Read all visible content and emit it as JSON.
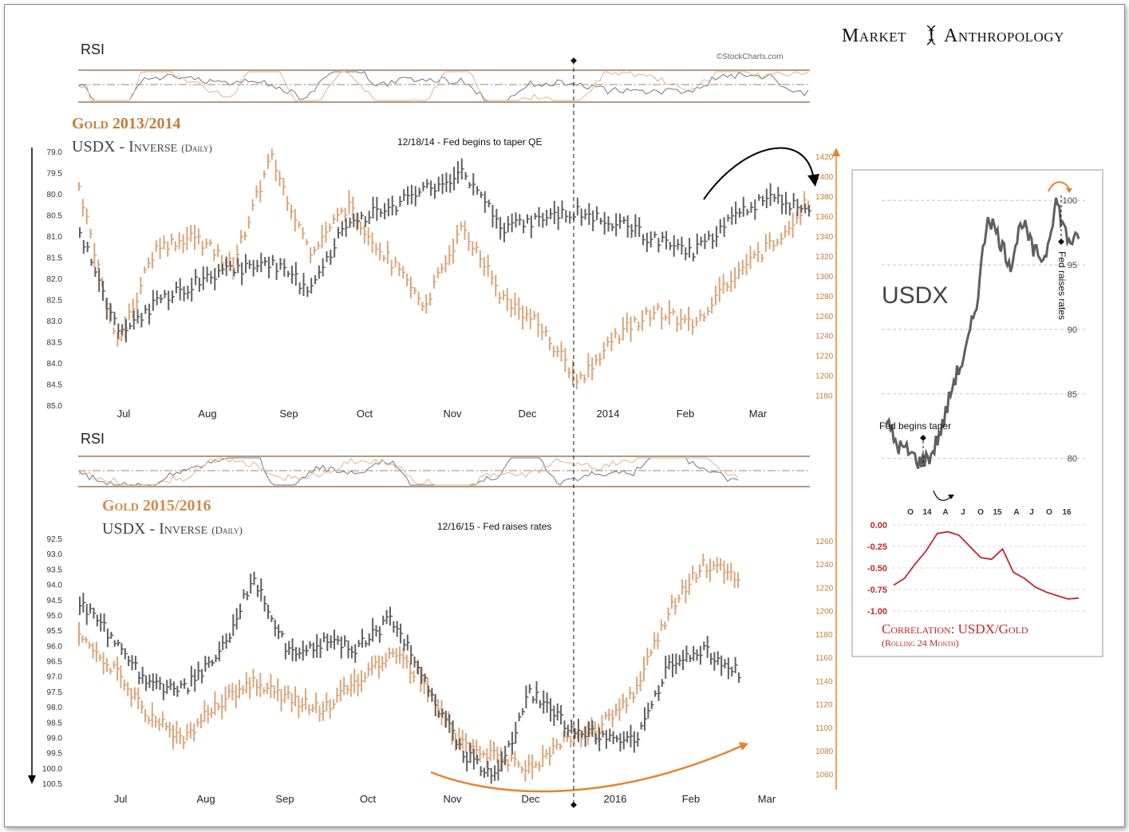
{
  "header": {
    "brand_left": "Market",
    "brand_right": "Anthropology",
    "copyright": "©StockCharts.com"
  },
  "colors": {
    "gold": "#d9a57a",
    "gold_title": "#c47d3c",
    "usdx": "#5f5f5f",
    "usdx_inverse_title": "#444444",
    "correlation": "#c0272d",
    "rsi_line": "#8a5a36",
    "annotation": "#000000",
    "arrow_orange": "#e8822a"
  },
  "chart_data": [
    {
      "type": "bar",
      "panel": "top",
      "rsi_label": "RSI",
      "title_gold": "Gold 2013/2014",
      "title_usdx": "USDX - Inverse",
      "title_usdx_sub": "(Daily)",
      "annotation": "12/18/14 - Fed begins to taper QE",
      "x_tick_labels": [
        "Jul",
        "Aug",
        "Sep",
        "Oct",
        "Nov",
        "Dec",
        "2014",
        "Feb",
        "Mar"
      ],
      "left_axis_ticks": [
        "79.0",
        "79.5",
        "80.0",
        "80.5",
        "81.0",
        "81.5",
        "82.0",
        "82.5",
        "83.0",
        "83.5",
        "84.0",
        "84.5",
        "85.0"
      ],
      "left_axis_inverted": true,
      "right_axis_ticks": [
        "1420",
        "1400",
        "1380",
        "1360",
        "1340",
        "1320",
        "1300",
        "1280",
        "1260",
        "1240",
        "1220",
        "1200",
        "1180"
      ],
      "ylim_left": [
        79.0,
        85.0
      ],
      "ylim_right": [
        1170,
        1425
      ],
      "series": [
        {
          "name": "Gold",
          "axis": "right",
          "x": [
            "Jun 27",
            "Jul 8",
            "Jul 22",
            "Aug 5",
            "Aug 19",
            "Aug 28",
            "Sep 10",
            "Sep 24",
            "Oct 8",
            "Oct 22",
            "Nov 5",
            "Nov 20",
            "Dec 5",
            "Dec 19",
            "Jan 8",
            "Jan 24",
            "Feb 10",
            "Feb 24",
            "Mar 7",
            "Mar 17"
          ],
          "values": [
            1390,
            1230,
            1330,
            1340,
            1310,
            1420,
            1325,
            1370,
            1320,
            1270,
            1350,
            1280,
            1250,
            1195,
            1240,
            1265,
            1250,
            1300,
            1330,
            1375
          ]
        },
        {
          "name": "USDX - Inverse",
          "axis": "left",
          "x": [
            "Jun 27",
            "Jul 8",
            "Jul 22",
            "Aug 5",
            "Aug 19",
            "Aug 28",
            "Sep 10",
            "Sep 24",
            "Oct 8",
            "Oct 22",
            "Nov 5",
            "Nov 20",
            "Dec 5",
            "Dec 19",
            "Jan 8",
            "Jan 24",
            "Feb 10",
            "Feb 24",
            "Mar 7",
            "Mar 17"
          ],
          "values": [
            80.9,
            83.3,
            82.6,
            82.1,
            81.8,
            81.6,
            82.3,
            80.6,
            80.4,
            79.9,
            79.5,
            80.8,
            80.6,
            80.4,
            80.7,
            81.1,
            81.4,
            80.6,
            80.0,
            80.5
          ]
        }
      ]
    },
    {
      "type": "bar",
      "panel": "bottom",
      "rsi_label": "RSI",
      "title_gold": "Gold 2015/2016",
      "title_usdx": "USDX - Inverse",
      "title_usdx_sub": "(Daily)",
      "annotation": "12/16/15 - Fed raises rates",
      "x_tick_labels": [
        "Jul",
        "Aug",
        "Sep",
        "Oct",
        "Nov",
        "Dec",
        "2016",
        "Feb",
        "Mar"
      ],
      "left_axis_ticks": [
        "92.5",
        "93.0",
        "93.5",
        "94.0",
        "94.5",
        "95.0",
        "95.5",
        "96.0",
        "96.5",
        "97.0",
        "97.5",
        "98.0",
        "98.5",
        "99.0",
        "99.5",
        "100.0",
        "100.5"
      ],
      "left_axis_inverted": true,
      "right_axis_ticks": [
        "1260",
        "1240",
        "1220",
        "1200",
        "1180",
        "1160",
        "1140",
        "1120",
        "1100",
        "1080",
        "1060"
      ],
      "ylim_left": [
        92.5,
        100.5
      ],
      "ylim_right": [
        1052,
        1262
      ],
      "series": [
        {
          "name": "Gold",
          "axis": "right",
          "x": [
            "Jun 27",
            "Jul 8",
            "Jul 22",
            "Aug 5",
            "Aug 19",
            "Aug 28",
            "Sep 10",
            "Sep 24",
            "Oct 8",
            "Oct 22",
            "Nov 5",
            "Nov 20",
            "Dec 5",
            "Dec 17",
            "Jan 8",
            "Jan 24",
            "Feb 3",
            "Feb 11",
            "Feb 18",
            "Feb 24"
          ],
          "values": [
            1175,
            1150,
            1110,
            1090,
            1120,
            1140,
            1125,
            1115,
            1140,
            1165,
            1140,
            1085,
            1075,
            1065,
            1090,
            1100,
            1130,
            1200,
            1240,
            1230
          ]
        },
        {
          "name": "USDX - Inverse",
          "axis": "left",
          "x": [
            "Jun 27",
            "Jul 8",
            "Jul 22",
            "Aug 5",
            "Aug 19",
            "Aug 28",
            "Sep 10",
            "Sep 24",
            "Oct 8",
            "Oct 22",
            "Nov 5",
            "Nov 20",
            "Dec 5",
            "Dec 17",
            "Jan 8",
            "Jan 24",
            "Feb 3",
            "Feb 11",
            "Feb 18",
            "Feb 24"
          ],
          "values": [
            94.6,
            95.8,
            97.3,
            97.4,
            96.4,
            93.8,
            96.2,
            95.9,
            96.1,
            95.1,
            97.3,
            99.5,
            100.3,
            97.5,
            98.6,
            98.9,
            99.1,
            96.6,
            96.1,
            96.9
          ]
        }
      ]
    },
    {
      "type": "line",
      "panel": "inset",
      "title": "USDX",
      "annotation_left": "Fed begins taper",
      "annotation_right": "Fed raises rates",
      "x_tick_labels": [
        "O",
        "14",
        "A",
        "J",
        "O",
        "15",
        "A",
        "J",
        "O",
        "16"
      ],
      "y_tick_labels": [
        "100",
        "95",
        "90",
        "85",
        "80"
      ],
      "ylim": [
        78,
        101
      ],
      "series": [
        {
          "name": "USDX",
          "x": [
            "2013-10",
            "2013-12",
            "2014-02",
            "2014-04",
            "2014-06",
            "2014-08",
            "2014-10",
            "2014-11",
            "2015-01",
            "2015-03",
            "2015-04",
            "2015-05",
            "2015-07",
            "2015-08",
            "2015-10",
            "2015-12",
            "2016-02",
            "2016-03"
          ],
          "values": [
            83.0,
            81.0,
            80.5,
            79.7,
            80.2,
            82.5,
            86.0,
            88.0,
            92.0,
            99.0,
            97.0,
            95.0,
            98.5,
            96.0,
            95.5,
            100.0,
            97.0,
            96.8
          ]
        }
      ]
    },
    {
      "type": "line",
      "panel": "correlation",
      "title": "Correlation: USDX/Gold",
      "subtitle": "(Rolling 24 Month)",
      "y_tick_labels": [
        "0.00",
        "-0.25",
        "-0.50",
        "-0.75",
        "-1.00"
      ],
      "ylim": [
        -1.0,
        0.0
      ],
      "series": [
        {
          "name": "Correlation: USDX/Gold",
          "values": [
            -0.7,
            -0.62,
            -0.45,
            -0.3,
            -0.1,
            -0.08,
            -0.12,
            -0.25,
            -0.38,
            -0.4,
            -0.28,
            -0.55,
            -0.62,
            -0.72,
            -0.78,
            -0.82,
            -0.86,
            -0.85
          ]
        }
      ]
    }
  ]
}
